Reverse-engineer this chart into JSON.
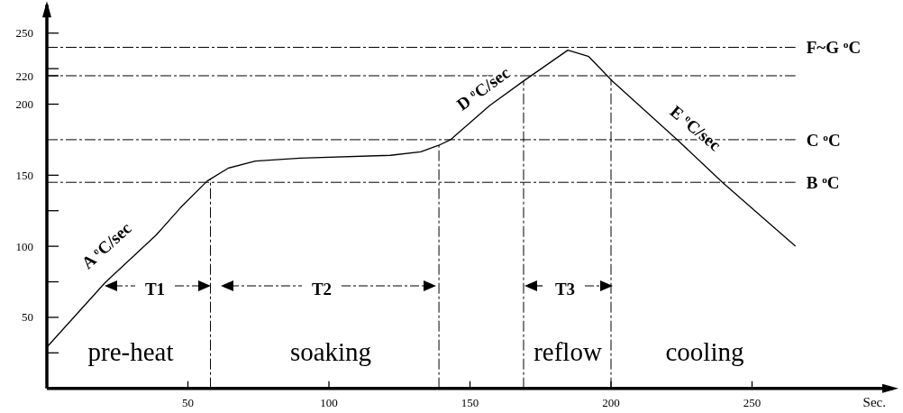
{
  "chart_data": {
    "type": "line",
    "xlabel": "Sec.",
    "x": [
      0,
      20.7,
      38.8,
      47.3,
      56.9,
      64.3,
      73.9,
      89.8,
      121.8,
      132.5,
      138.9,
      143.1,
      157,
      169.2,
      184.7,
      192.1,
      200.6,
      224,
      239.5,
      265.4
    ],
    "series": [
      {
        "color": "#000000",
        "values": [
          29,
          74.5,
          108,
          127,
          146,
          155,
          160,
          162,
          164,
          166.5,
          171,
          175,
          199,
          216.6,
          238,
          233.5,
          216,
          174,
          145,
          100
        ]
      }
    ],
    "xlim": [
      0,
      300
    ],
    "xticks": [
      50,
      100,
      150,
      200,
      250
    ],
    "ylim": [
      0,
      270
    ],
    "yticks": [
      {
        "value": 25,
        "label": null
      },
      50,
      {
        "value": 75,
        "label": null
      },
      100,
      {
        "value": 125,
        "label": null
      },
      150,
      200,
      220,
      {
        "value": 225,
        "label": null
      },
      250
    ],
    "grid": false,
    "marker": "none",
    "line_style": "solid",
    "ref_lines": [
      {
        "axis": "y",
        "value": 240,
        "label": "F~G  $^{o}$C",
        "line_style": "dashed",
        "color": "#000000"
      },
      {
        "axis": "y",
        "value": 220,
        "line_style": "dashed",
        "color": "#000000"
      },
      {
        "axis": "y",
        "value": 175,
        "label": "C  $^{o}$C",
        "line_style": "dashed",
        "color": "#000000"
      },
      {
        "axis": "y",
        "value": 145,
        "label": "B  $^{o}$C",
        "line_style": "dashed",
        "color": "#000000"
      },
      {
        "axis": "x",
        "value": 58,
        "line_style": "dashed",
        "color": "#000000"
      },
      {
        "axis": "x",
        "value": 139,
        "line_style": "dashed",
        "color": "#000000"
      },
      {
        "axis": "x",
        "value": 169,
        "line_style": "dashed",
        "color": "#000000"
      },
      {
        "axis": "x",
        "value": 200,
        "line_style": "dashed",
        "color": "#000000"
      }
    ],
    "annotations": [
      "A  $^{o}$C/sec",
      "D  $^{o}$C/sec",
      "E  $^{o}$C/sec",
      "T1",
      "T2",
      "T3",
      "pre-heat",
      "soaking",
      "reflow",
      "cooling"
    ]
  }
}
